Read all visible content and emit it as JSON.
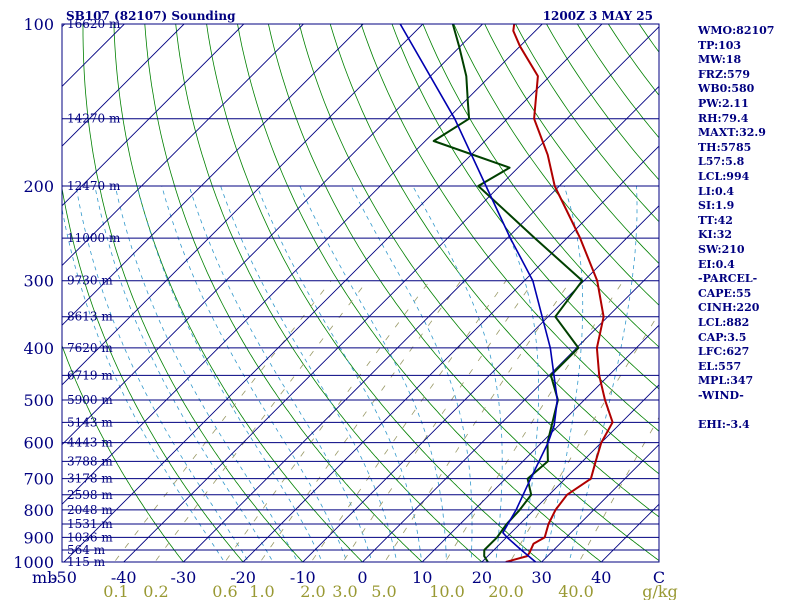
{
  "header": {
    "station": "SB107 (82107) Sounding",
    "time": "1200Z  3 MAY 25"
  },
  "indices": [
    "WMO:82107",
    "TP:103",
    "MW:18",
    "FRZ:579",
    "WB0:580",
    "PW:2.11",
    "RH:79.4",
    "MAXT:32.9",
    "TH:5785",
    "L57:5.8",
    "LCL:994",
    "LI:0.4",
    "SI:1.9",
    "TT:42",
    "KI:32",
    "SW:210",
    "EI:0.4",
    "-PARCEL-",
    "CAPE:55",
    "CINH:220",
    "LCL:882",
    "CAP:3.5",
    "LFC:627",
    "EL:557",
    "MPL:347",
    "-WIND-",
    "",
    "EHI:-3.4"
  ],
  "colors": {
    "frame": "#000080",
    "isobar": "#000080",
    "isotherm": "#000080",
    "dry_adiabat": "#008000",
    "moist_adiabat": "#3399cc",
    "mixing_ratio": "#999966",
    "temperature": "#b00000",
    "dewpoint": "#004000",
    "parcel": "#0000b0",
    "axis_text": "#000080",
    "mixing_text": "#999933"
  },
  "chart_data": {
    "type": "line",
    "title": "SB107 (82107) Sounding",
    "xlabel": "C",
    "ylabel": "mb",
    "xlim": [
      -50,
      50
    ],
    "ylim": [
      1000,
      100
    ],
    "y_scale": "log",
    "skew": true,
    "grid": true,
    "x_ticks": [
      -50,
      -40,
      -30,
      -20,
      -10,
      0,
      10,
      20,
      30,
      40
    ],
    "x_tick_labels": [
      "-50",
      "-40",
      "-30",
      "-20",
      "-10",
      "0",
      "10",
      "20",
      "30",
      "40"
    ],
    "pressure_ticks": [
      100,
      200,
      300,
      400,
      500,
      600,
      700,
      800,
      900,
      1000
    ],
    "pressure_labels": [
      "100",
      "200",
      "300",
      "400",
      "500",
      "600",
      "700",
      "800",
      "900",
      "1000"
    ],
    "height_levels": [
      {
        "p": 100,
        "label": "16620 m"
      },
      {
        "p": 150,
        "label": "14270 m"
      },
      {
        "p": 200,
        "label": "12470 m"
      },
      {
        "p": 250,
        "label": "11000 m"
      },
      {
        "p": 300,
        "label": "9730 m"
      },
      {
        "p": 350,
        "label": "8613 m"
      },
      {
        "p": 400,
        "label": "7620 m"
      },
      {
        "p": 450,
        "label": "6719 m"
      },
      {
        "p": 500,
        "label": "5900 m"
      },
      {
        "p": 550,
        "label": "5143 m"
      },
      {
        "p": 600,
        "label": "4443 m"
      },
      {
        "p": 650,
        "label": "3788 m"
      },
      {
        "p": 700,
        "label": "3178 m"
      },
      {
        "p": 750,
        "label": "2598 m"
      },
      {
        "p": 800,
        "label": "2048 m"
      },
      {
        "p": 850,
        "label": "1531 m"
      },
      {
        "p": 900,
        "label": "1036 m"
      },
      {
        "p": 950,
        "label": "564 m"
      },
      {
        "p": 1000,
        "label": "115 m"
      }
    ],
    "mixing_ratio_labels": [
      "0.1",
      "0.2",
      "0.6",
      "1.0",
      "2.0",
      "3.0",
      "5.0",
      "10.0",
      "20.0",
      "40.0",
      "g/kg"
    ],
    "series": [
      {
        "key": "temperature",
        "points": [
          {
            "p": 1000,
            "t": 24.0
          },
          {
            "p": 990,
            "t": 25.0
          },
          {
            "p": 975,
            "t": 26.6
          },
          {
            "p": 960,
            "t": 26.4
          },
          {
            "p": 925,
            "t": 25.6
          },
          {
            "p": 900,
            "t": 26.4
          },
          {
            "p": 850,
            "t": 24.8
          },
          {
            "p": 800,
            "t": 23.6
          },
          {
            "p": 750,
            "t": 23.0
          },
          {
            "p": 700,
            "t": 24.3
          },
          {
            "p": 650,
            "t": 22.2
          },
          {
            "p": 600,
            "t": 20.0
          },
          {
            "p": 550,
            "t": 18.5
          },
          {
            "p": 500,
            "t": 13.5
          },
          {
            "p": 450,
            "t": 8.4
          },
          {
            "p": 400,
            "t": 3.4
          },
          {
            "p": 350,
            "t": -0.7
          },
          {
            "p": 300,
            "t": -7.8
          },
          {
            "p": 250,
            "t": -17.8
          },
          {
            "p": 200,
            "t": -30.8
          },
          {
            "p": 175,
            "t": -37.2
          },
          {
            "p": 150,
            "t": -45.5
          },
          {
            "p": 125,
            "t": -52.0
          },
          {
            "p": 110,
            "t": -60.0
          },
          {
            "p": 103,
            "t": -63.7
          },
          {
            "p": 100,
            "t": -64.7
          }
        ]
      },
      {
        "key": "dewpoint",
        "points": [
          {
            "p": 1000,
            "t": 21.0
          },
          {
            "p": 975,
            "t": 19.4
          },
          {
            "p": 950,
            "t": 18.4
          },
          {
            "p": 900,
            "t": 18.4
          },
          {
            "p": 850,
            "t": 17.8
          },
          {
            "p": 800,
            "t": 17.6
          },
          {
            "p": 750,
            "t": 17.0
          },
          {
            "p": 700,
            "t": 13.7
          },
          {
            "p": 650,
            "t": 14.2
          },
          {
            "p": 600,
            "t": 11.0
          },
          {
            "p": 500,
            "t": 5.6
          },
          {
            "p": 450,
            "t": 0.3
          },
          {
            "p": 400,
            "t": 0.3
          },
          {
            "p": 350,
            "t": -8.8
          },
          {
            "p": 300,
            "t": -10.3
          },
          {
            "p": 250,
            "t": -25.4
          },
          {
            "p": 200,
            "t": -43.6
          },
          {
            "p": 185,
            "t": -41.4
          },
          {
            "p": 165,
            "t": -58.6
          },
          {
            "p": 150,
            "t": -56.4
          },
          {
            "p": 140,
            "t": -59.3
          },
          {
            "p": 125,
            "t": -64.0
          },
          {
            "p": 110,
            "t": -70.2
          },
          {
            "p": 100,
            "t": -75.0
          }
        ]
      },
      {
        "key": "parcel",
        "points": [
          {
            "p": 1000,
            "t": 29.0
          },
          {
            "p": 950,
            "t": 24.6
          },
          {
            "p": 900,
            "t": 20.1
          },
          {
            "p": 882,
            "t": 18.6
          },
          {
            "p": 800,
            "t": 17.0
          },
          {
            "p": 700,
            "t": 14.2
          },
          {
            "p": 600,
            "t": 11.1
          },
          {
            "p": 557,
            "t": 9.2
          },
          {
            "p": 500,
            "t": 5.5
          },
          {
            "p": 400,
            "t": -4.4
          },
          {
            "p": 300,
            "t": -18.6
          },
          {
            "p": 250,
            "t": -29.5
          },
          {
            "p": 200,
            "t": -42.3
          },
          {
            "p": 150,
            "t": -58.8
          },
          {
            "p": 100,
            "t": -83.8
          }
        ]
      }
    ]
  }
}
